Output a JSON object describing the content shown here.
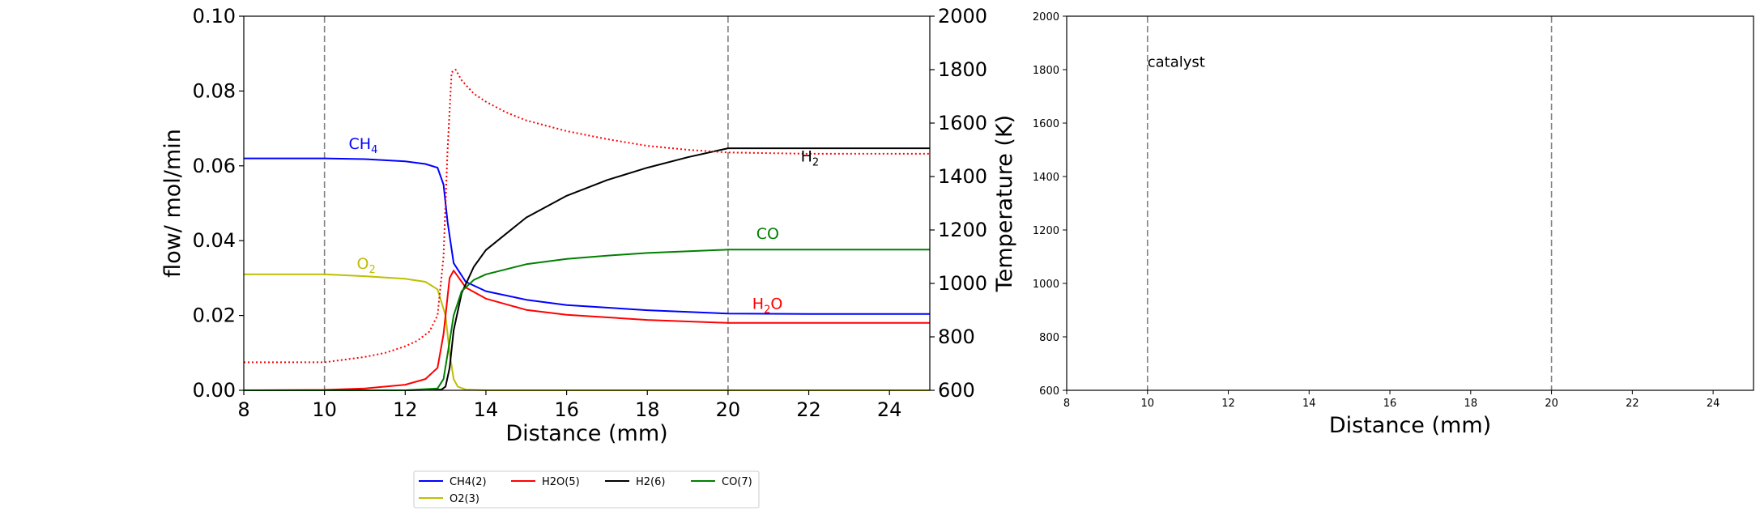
{
  "chart_data": [
    {
      "type": "line",
      "title": "",
      "xlabel": "Distance (mm)",
      "ylabel": "flow/ mol/min",
      "y2label": "Temperature (K)",
      "xlim": [
        8,
        25
      ],
      "ylim": [
        0,
        0.1
      ],
      "y2lim": [
        600,
        2000
      ],
      "xticks": [
        "8",
        "10",
        "12",
        "14",
        "16",
        "18",
        "20",
        "22",
        "24"
      ],
      "yticks": [
        "0.00",
        "0.02",
        "0.04",
        "0.06",
        "0.08",
        "0.10"
      ],
      "y2ticks": [
        "600",
        "800",
        "1000",
        "1200",
        "1400",
        "1600",
        "1800",
        "2000"
      ],
      "grid": false,
      "vlines": [
        10,
        20
      ],
      "series": [
        {
          "name": "CH4(2)",
          "color": "#0000ff",
          "style": "solid",
          "axis": "left",
          "x": [
            8,
            10,
            11,
            12,
            12.5,
            12.8,
            12.95,
            13.05,
            13.2,
            13.5,
            14,
            15,
            16,
            18,
            20,
            22,
            25
          ],
          "y": [
            0.062,
            0.062,
            0.0618,
            0.0612,
            0.0605,
            0.0595,
            0.055,
            0.045,
            0.034,
            0.029,
            0.0265,
            0.0242,
            0.0228,
            0.0214,
            0.0205,
            0.0204,
            0.0204
          ]
        },
        {
          "name": "O2(3)",
          "color": "#bfbf00",
          "style": "solid",
          "axis": "left",
          "x": [
            8,
            10,
            11,
            12,
            12.5,
            12.8,
            13.0,
            13.1,
            13.2,
            13.3,
            13.5,
            14,
            25
          ],
          "y": [
            0.031,
            0.031,
            0.0305,
            0.0298,
            0.029,
            0.027,
            0.02,
            0.01,
            0.003,
            0.001,
            0.0002,
            0,
            0
          ]
        },
        {
          "name": "H2O(5)",
          "color": "#ff0000",
          "style": "solid",
          "axis": "left",
          "x": [
            8,
            10,
            11,
            12,
            12.5,
            12.8,
            12.95,
            13.1,
            13.2,
            13.3,
            13.5,
            14,
            15,
            16,
            18,
            20,
            22,
            25
          ],
          "y": [
            0,
            0.0001,
            0.0005,
            0.0015,
            0.003,
            0.006,
            0.015,
            0.03,
            0.032,
            0.0305,
            0.0275,
            0.0245,
            0.0215,
            0.0202,
            0.0188,
            0.018,
            0.018,
            0.018
          ]
        },
        {
          "name": "H2(6)",
          "color": "#000000",
          "style": "solid",
          "axis": "left",
          "x": [
            8,
            12,
            12.9,
            13.0,
            13.1,
            13.2,
            13.4,
            13.7,
            14,
            15,
            16,
            17,
            18,
            19,
            20,
            22,
            25
          ],
          "y": [
            0,
            0,
            0.0002,
            0.001,
            0.006,
            0.016,
            0.026,
            0.033,
            0.0375,
            0.0462,
            0.052,
            0.0562,
            0.0595,
            0.0623,
            0.0647,
            0.0647,
            0.0647
          ]
        },
        {
          "name": "CO(7)",
          "color": "#008000",
          "style": "solid",
          "axis": "left",
          "x": [
            8,
            12,
            12.8,
            12.95,
            13.1,
            13.2,
            13.4,
            13.7,
            14,
            15,
            16,
            17,
            18,
            20,
            22,
            25
          ],
          "y": [
            0,
            0,
            0.0005,
            0.003,
            0.013,
            0.02,
            0.0265,
            0.0295,
            0.031,
            0.0337,
            0.0351,
            0.036,
            0.0367,
            0.0376,
            0.0376,
            0.0376
          ]
        },
        {
          "name": "",
          "color": "#ff0000",
          "style": "dotted",
          "axis": "right",
          "x": [
            8,
            10,
            10.5,
            11,
            11.5,
            12,
            12.3,
            12.6,
            12.8,
            12.95,
            13.05,
            13.15,
            13.25,
            13.4,
            13.7,
            14,
            14.5,
            15,
            16,
            17,
            18,
            19,
            20,
            22,
            25
          ],
          "y": [
            705,
            705,
            715,
            725,
            740,
            765,
            785,
            820,
            880,
            1100,
            1500,
            1790,
            1800,
            1760,
            1710,
            1680,
            1640,
            1610,
            1570,
            1540,
            1515,
            1500,
            1490,
            1485,
            1485
          ]
        }
      ],
      "annotations": [
        {
          "text": "CH",
          "sub": "4",
          "x": 10.6,
          "y": 0.0645,
          "color": "#0000ff"
        },
        {
          "text": "O",
          "sub": "2",
          "x": 10.8,
          "y": 0.0325,
          "color": "#bfbf00"
        },
        {
          "text": "H",
          "sub": "2",
          "x": 21.8,
          "y": 0.0612,
          "color": "#000000"
        },
        {
          "text": "CO",
          "sub": "",
          "x": 20.7,
          "y": 0.0405,
          "color": "#008000"
        },
        {
          "text": "H",
          "sub": "2",
          "tail": "O",
          "x": 20.6,
          "y": 0.0218,
          "color": "#ff0000"
        }
      ],
      "legend": {
        "placement": "below",
        "entries": [
          {
            "label": "CH4(2)",
            "color": "#0000ff"
          },
          {
            "label": "H2O(5)",
            "color": "#ff0000"
          },
          {
            "label": "H2(6)",
            "color": "#000000"
          },
          {
            "label": "CO(7)",
            "color": "#008000"
          },
          {
            "label": "O2(3)",
            "color": "#bfbf00"
          }
        ]
      }
    },
    {
      "type": "line",
      "title": "",
      "xlabel": "Distance (mm)",
      "ylabel": "",
      "xlim": [
        8,
        25
      ],
      "ylim": [
        600,
        2000
      ],
      "xticks": [
        "8",
        "10",
        "12",
        "14",
        "16",
        "18",
        "20",
        "22",
        "24"
      ],
      "yticks": [
        "600",
        "800",
        "1000",
        "1200",
        "1400",
        "1600",
        "1800",
        "2000"
      ],
      "grid": false,
      "vlines": [
        10,
        20
      ],
      "series": [],
      "annotations": [
        {
          "text": "catalyst",
          "x": 10,
          "y": 1810,
          "color": "#000000"
        }
      ]
    }
  ]
}
